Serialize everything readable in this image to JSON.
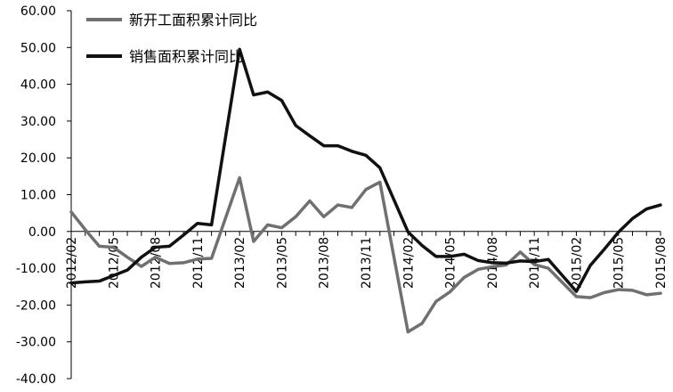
{
  "chart_data": {
    "type": "line",
    "title": "",
    "xlabel": "",
    "ylabel": "",
    "ylim": [
      -40,
      60
    ],
    "yticks": [
      "60.00",
      "50.00",
      "40.00",
      "30.00",
      "20.00",
      "10.00",
      "0.00",
      "-10.00",
      "-20.00",
      "-30.00",
      "-40.00"
    ],
    "x_tick_labels": [
      "2012/02",
      "2012/05",
      "2012/08",
      "2012/11",
      "2013/02",
      "2013/05",
      "2013/08",
      "2013/11",
      "2014/02",
      "2014/05",
      "2014/08",
      "2014/11",
      "2015/02",
      "2015/05",
      "2015/08"
    ],
    "grid": false,
    "legend_position": "top-left",
    "colors": {
      "new_start": "#707070",
      "sales": "#111111"
    },
    "x": [
      "2012/02",
      "2012/03",
      "2012/04",
      "2012/05",
      "2012/06",
      "2012/07",
      "2012/08",
      "2012/09",
      "2012/10",
      "2012/11",
      "2012/12",
      "2013/01",
      "2013/02",
      "2013/03",
      "2013/04",
      "2013/05",
      "2013/06",
      "2013/07",
      "2013/08",
      "2013/09",
      "2013/10",
      "2013/11",
      "2013/12",
      "2014/01",
      "2014/02",
      "2014/03",
      "2014/04",
      "2014/05",
      "2014/06",
      "2014/07",
      "2014/08",
      "2014/09",
      "2014/10",
      "2014/11",
      "2014/12",
      "2015/01",
      "2015/02",
      "2015/03",
      "2015/04",
      "2015/05",
      "2015/06",
      "2015/07",
      "2015/08"
    ],
    "series": [
      {
        "name": "新开工面积累计同比",
        "color": "#707070",
        "values": [
          5.3,
          0.5,
          -4.0,
          -4.3,
          -7.0,
          -9.5,
          -7.0,
          -8.7,
          -8.5,
          -7.5,
          -7.3,
          null,
          14.6,
          -2.7,
          1.8,
          1.0,
          4.0,
          8.3,
          4.0,
          7.2,
          6.5,
          11.4,
          13.4,
          null,
          -27.3,
          -25.0,
          -19.0,
          -16.4,
          -12.5,
          -10.3,
          -9.6,
          -9.1,
          -5.6,
          -9.0,
          -10.0,
          null,
          -17.7,
          -18.0,
          -16.6,
          -15.8,
          -16.0,
          -17.2,
          -16.8
        ]
      },
      {
        "name": "销售面积累计同比",
        "color": "#111111",
        "values": [
          -14.0,
          -13.7,
          -13.5,
          -12.0,
          -10.5,
          -7.0,
          -4.3,
          -4.0,
          -1.0,
          2.2,
          1.8,
          null,
          49.5,
          37.1,
          37.9,
          35.6,
          28.8,
          26.0,
          23.3,
          23.3,
          21.8,
          20.7,
          17.3,
          null,
          -0.1,
          -3.8,
          -6.8,
          -6.8,
          -6.2,
          -7.9,
          -8.5,
          -8.6,
          -8.0,
          -8.2,
          -7.6,
          null,
          -16.3,
          -9.2,
          -4.8,
          -0.2,
          3.5,
          6.1,
          7.2
        ]
      }
    ]
  }
}
